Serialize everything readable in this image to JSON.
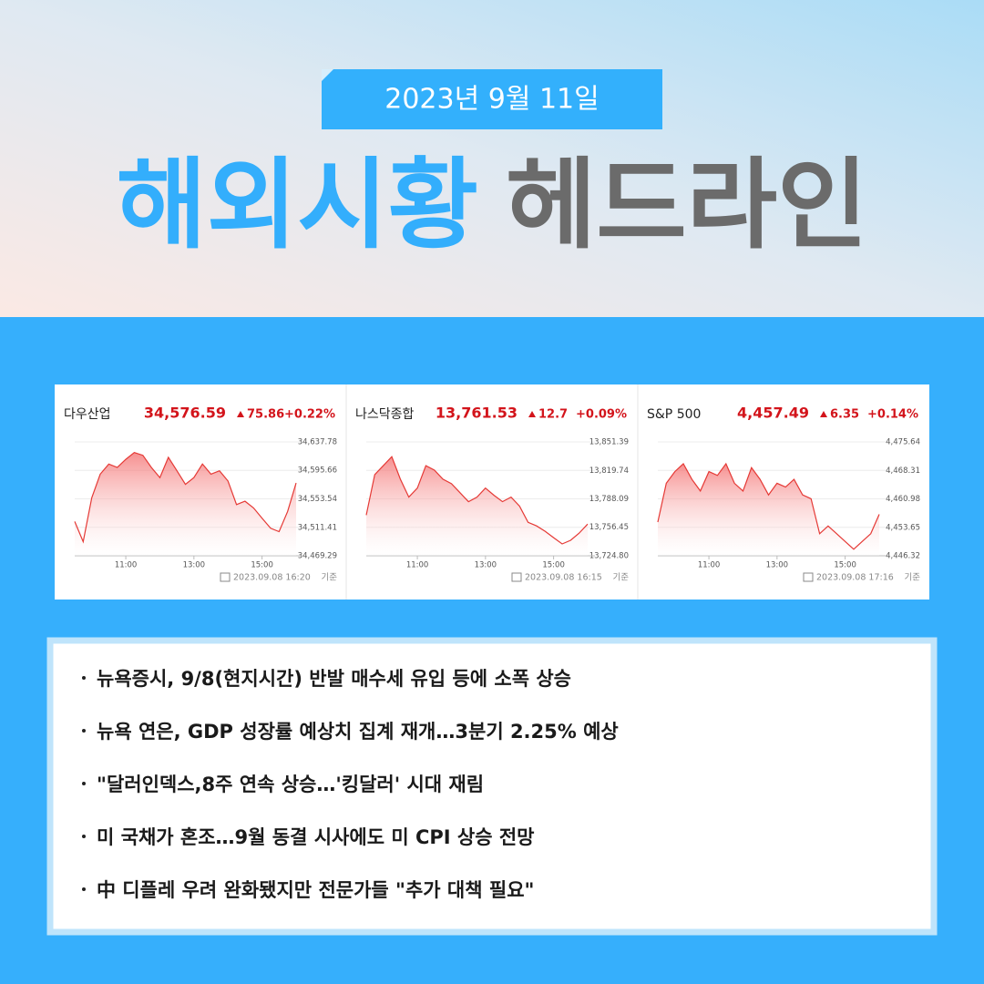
{
  "header": {
    "date": "2023년 9월 11일",
    "title_blue": "해외시황",
    "title_gray": "헤드라인"
  },
  "chart_data": [
    {
      "type": "line",
      "name": "다우산업",
      "price": "34,576.59",
      "change": "75.86",
      "change_pct": "+0.22%",
      "timestamp": "2023.09.08 16:20",
      "basis": "기준",
      "x": [
        9.5,
        9.75,
        10,
        10.25,
        10.5,
        10.75,
        11,
        11.25,
        11.5,
        11.75,
        12,
        12.25,
        12.5,
        12.75,
        13,
        13.25,
        13.5,
        13.75,
        14,
        14.25,
        14.5,
        14.75,
        15,
        15.25,
        15.5,
        15.75,
        16
      ],
      "values": [
        34520,
        34490,
        34555,
        34590,
        34605,
        34600,
        34612,
        34622,
        34618,
        34600,
        34585,
        34615,
        34595,
        34575,
        34585,
        34605,
        34590,
        34595,
        34580,
        34545,
        34550,
        34540,
        34525,
        34510,
        34505,
        34535,
        34577
      ],
      "color": "#e53935",
      "xlim": [
        9.5,
        16
      ],
      "xticks": [
        {
          "value": 11,
          "label": "11:00"
        },
        {
          "value": 13,
          "label": "13:00"
        },
        {
          "value": 15,
          "label": "15:00"
        }
      ],
      "ylim": [
        34469.29,
        34637.78
      ],
      "yticks": [
        {
          "value": 34469.29,
          "label": "34,469.29"
        },
        {
          "value": 34511.41,
          "label": "34,511.41"
        },
        {
          "value": 34553.54,
          "label": "34,553.54"
        },
        {
          "value": 34595.66,
          "label": "34,595.66"
        },
        {
          "value": 34637.78,
          "label": "34,637.78"
        }
      ],
      "grid": true
    },
    {
      "type": "line",
      "name": "나스닥종합",
      "price": "13,761.53",
      "change": "12.7",
      "change_pct": "+0.09%",
      "timestamp": "2023.09.08 16:15",
      "basis": "기준",
      "x": [
        9.5,
        9.75,
        10,
        10.25,
        10.5,
        10.75,
        11,
        11.25,
        11.5,
        11.75,
        12,
        12.25,
        12.5,
        12.75,
        13,
        13.25,
        13.5,
        13.75,
        14,
        14.25,
        14.5,
        14.75,
        15,
        15.25,
        15.5,
        15.75,
        16
      ],
      "values": [
        13770,
        13815,
        13825,
        13835,
        13810,
        13790,
        13800,
        13825,
        13820,
        13810,
        13805,
        13795,
        13785,
        13790,
        13800,
        13792,
        13785,
        13790,
        13780,
        13762,
        13758,
        13752,
        13745,
        13738,
        13742,
        13750,
        13760
      ],
      "color": "#e53935",
      "xlim": [
        9.5,
        16
      ],
      "xticks": [
        {
          "value": 11,
          "label": "11:00"
        },
        {
          "value": 13,
          "label": "13:00"
        },
        {
          "value": 15,
          "label": "15:00"
        }
      ],
      "ylim": [
        13724.8,
        13851.39
      ],
      "yticks": [
        {
          "value": 13724.8,
          "label": "13,724.80"
        },
        {
          "value": 13756.45,
          "label": "13,756.45"
        },
        {
          "value": 13788.09,
          "label": "13,788.09"
        },
        {
          "value": 13819.74,
          "label": "13,819.74"
        },
        {
          "value": 13851.39,
          "label": "13,851.39"
        }
      ],
      "grid": true
    },
    {
      "type": "line",
      "name": "S&P 500",
      "price": "4,457.49",
      "change": "6.35",
      "change_pct": "+0.14%",
      "timestamp": "2023.09.08 17:16",
      "basis": "기준",
      "x": [
        9.5,
        9.75,
        10,
        10.25,
        10.5,
        10.75,
        11,
        11.25,
        11.5,
        11.75,
        12,
        12.25,
        12.5,
        12.75,
        13,
        13.25,
        13.5,
        13.75,
        14,
        14.25,
        14.5,
        14.75,
        15,
        15.25,
        15.5,
        15.75,
        16
      ],
      "values": [
        4455,
        4465,
        4468,
        4470,
        4466,
        4463,
        4468,
        4467,
        4470,
        4465,
        4463,
        4469,
        4466,
        4462,
        4465,
        4464,
        4466,
        4462,
        4461,
        4452,
        4454,
        4452,
        4450,
        4448,
        4450,
        4452,
        4457
      ],
      "color": "#e53935",
      "xlim": [
        9.5,
        16
      ],
      "xticks": [
        {
          "value": 11,
          "label": "11:00"
        },
        {
          "value": 13,
          "label": "13:00"
        },
        {
          "value": 15,
          "label": "15:00"
        }
      ],
      "ylim": [
        4446.32,
        4475.64
      ],
      "yticks": [
        {
          "value": 4446.32,
          "label": "4,446.32"
        },
        {
          "value": 4453.65,
          "label": "4,453.65"
        },
        {
          "value": 4460.98,
          "label": "4,460.98"
        },
        {
          "value": 4468.31,
          "label": "4,468.31"
        },
        {
          "value": 4475.64,
          "label": "4,475.64"
        }
      ],
      "grid": true
    }
  ],
  "headlines": [
    "뉴욕증시, 9/8(현지시간) 반발 매수세 유입 등에 소폭 상승",
    "뉴욕 연은, GDP 성장률 예상치 집계 재개…3분기 2.25% 예상",
    "\"달러인덱스,8주 연속 상승…'킹달러' 시대 재림",
    "미 국채가 혼조…9월 동결 시사에도 미 CPI 상승 전망",
    "中 디플레 우려 완화됐지만 전문가들 \"추가 대책 필요\""
  ]
}
